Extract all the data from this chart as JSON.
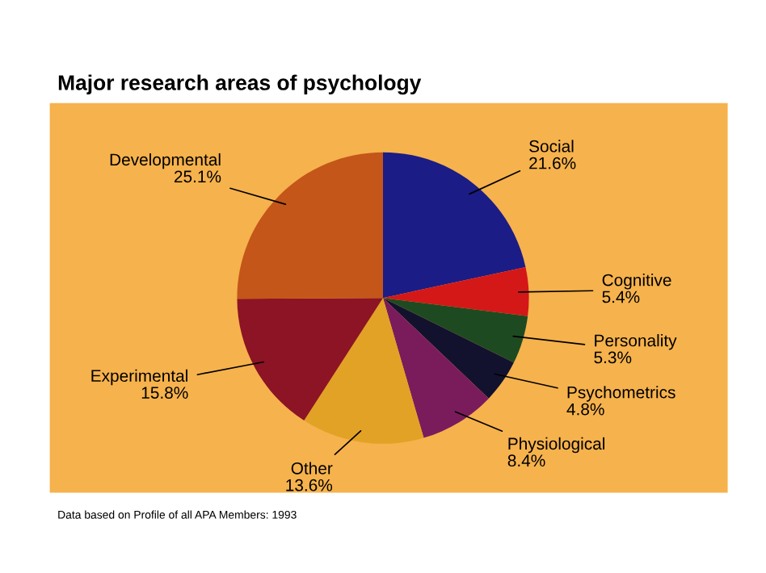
{
  "chart_data": {
    "type": "pie",
    "title": "Major research areas of psychology",
    "categories": [
      "Social",
      "Cognitive",
      "Personality",
      "Psychometrics",
      "Physiological",
      "Other",
      "Experimental",
      "Developmental"
    ],
    "values": [
      21.6,
      5.4,
      5.3,
      4.8,
      8.4,
      13.6,
      15.8,
      25.1
    ],
    "colors": [
      "#1c1c86",
      "#d41818",
      "#1e4a22",
      "#12122e",
      "#7a1c5c",
      "#e2a226",
      "#8c1424",
      "#c4561a"
    ],
    "value_labels": [
      "21.6%",
      "5.4%",
      "5.3%",
      "4.8%",
      "8.4%",
      "13.6%",
      "15.8%",
      "25.1%"
    ],
    "annotations": [
      "Data based on Profile of all APA Members: 1993"
    ]
  }
}
